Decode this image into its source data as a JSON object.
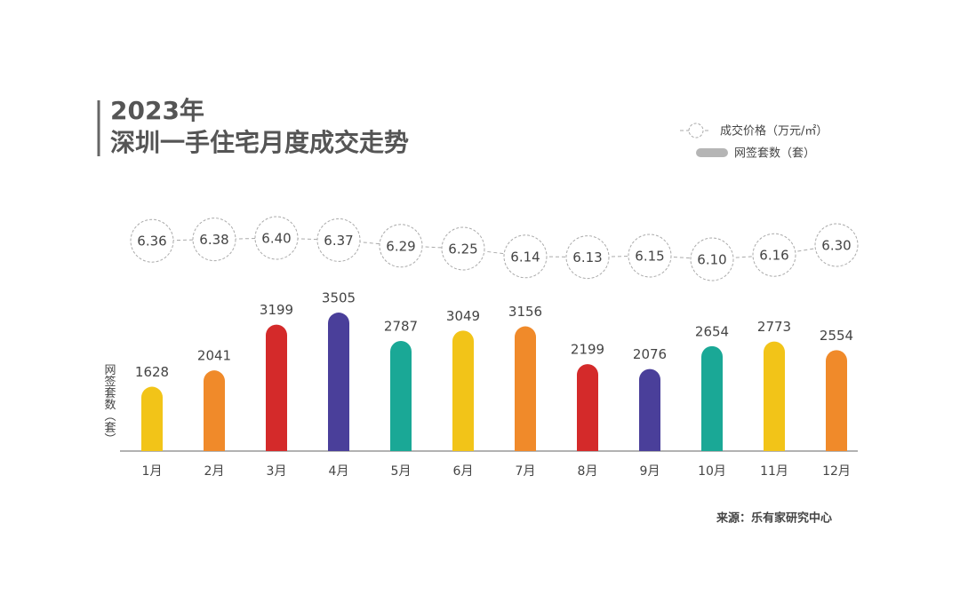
{
  "chart_data": {
    "type": "bar",
    "title": "2023年",
    "subtitle": "深圳一手住宅月度成交走势",
    "y_label": "网签套数（套）",
    "source": "来源：乐有家研究中心",
    "categories": [
      "1月",
      "2月",
      "3月",
      "4月",
      "5月",
      "6月",
      "7月",
      "8月",
      "9月",
      "10月",
      "11月",
      "12月"
    ],
    "ylim": [
      0,
      4000
    ],
    "y2lim": [
      6.0,
      6.5
    ],
    "series": [
      {
        "name": "网签套数（套）",
        "type": "bar",
        "color": "#b5b5b5",
        "colors": [
          "#f2c418",
          "#f08a2a",
          "#d42a2a",
          "#4a3f9a",
          "#1aa896",
          "#f2c418",
          "#f08a2a",
          "#d42a2a",
          "#4a3f9a",
          "#1aa896",
          "#f2c418",
          "#f08a2a"
        ],
        "values": [
          1628,
          2041,
          3199,
          3505,
          2787,
          3049,
          3156,
          2199,
          2076,
          2654,
          2773,
          2554
        ]
      },
      {
        "name": "成交价格（万元/㎡）",
        "type": "line",
        "axis": "y2",
        "color": "#aaaaaa",
        "values": [
          6.36,
          6.38,
          6.4,
          6.37,
          6.29,
          6.25,
          6.14,
          6.13,
          6.15,
          6.1,
          6.16,
          6.3
        ],
        "value_labels": [
          "6.36",
          "6.38",
          "6.40",
          "6.37",
          "6.29",
          "6.25",
          "6.14",
          "6.13",
          "6.15",
          "6.10",
          "6.16",
          "6.30"
        ]
      }
    ]
  }
}
